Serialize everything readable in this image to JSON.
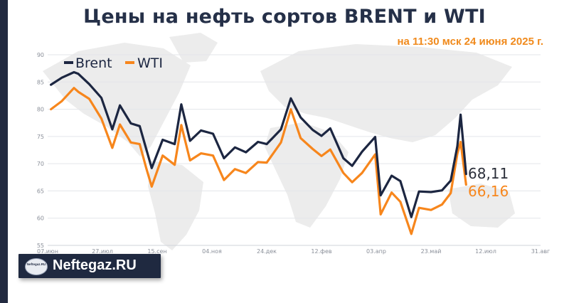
{
  "header": {
    "title": "Цены на нефть сортов BRENT и WTI",
    "subtitle": "на 11:30 мск 24 июня 2025 г."
  },
  "logo": {
    "badge_text": "Neftegaz.RU",
    "text": "Neftegaz.RU"
  },
  "colors": {
    "brent": "#1c2641",
    "wti": "#f7861c",
    "grid": "#e3e5ea",
    "axis_text": "#8a8f99",
    "map": "#ececec"
  },
  "chart_data": {
    "type": "line",
    "title": "Цены на нефть сортов BRENT и WTI",
    "xlabel": "",
    "ylabel": "",
    "ylim": [
      55,
      90
    ],
    "yticks": [
      55,
      60,
      65,
      70,
      75,
      80,
      85,
      90
    ],
    "grid": true,
    "legend_placement": "top-left",
    "x_range": [
      "2024-06-07",
      "2025-08-31"
    ],
    "x_tick_labels": [
      "07.июн",
      "27.июл",
      "15.сен",
      "04.ноя",
      "24.дек",
      "12.фев",
      "03.апр",
      "23.май",
      "12.июл",
      "31.авг"
    ],
    "x": [
      "2024-06-10",
      "2024-06-20",
      "2024-07-01",
      "2024-07-05",
      "2024-07-15",
      "2024-07-26",
      "2024-08-05",
      "2024-08-12",
      "2024-08-22",
      "2024-08-30",
      "2024-09-05",
      "2024-09-10",
      "2024-09-20",
      "2024-10-01",
      "2024-10-07",
      "2024-10-15",
      "2024-10-25",
      "2024-11-05",
      "2024-11-15",
      "2024-11-25",
      "2024-12-05",
      "2024-12-16",
      "2024-12-24",
      "2025-01-06",
      "2025-01-15",
      "2025-01-24",
      "2025-02-04",
      "2025-02-12",
      "2025-02-20",
      "2025-03-04",
      "2025-03-12",
      "2025-03-21",
      "2025-04-02",
      "2025-04-07",
      "2025-04-17",
      "2025-04-25",
      "2025-05-05",
      "2025-05-12",
      "2025-05-23",
      "2025-06-02",
      "2025-06-10",
      "2025-06-16",
      "2025-06-19",
      "2025-06-24"
    ],
    "series": [
      {
        "name": "Brent",
        "values": [
          84.5,
          85.8,
          86.8,
          86.5,
          84.6,
          82.1,
          76.3,
          80.7,
          77.4,
          76.9,
          72.7,
          69.2,
          74.4,
          73.6,
          80.9,
          74.2,
          76.1,
          75.5,
          71.0,
          73.0,
          72.1,
          74.0,
          73.6,
          76.3,
          82.0,
          78.5,
          76.2,
          75.1,
          76.5,
          71.0,
          69.6,
          72.2,
          74.9,
          64.2,
          67.8,
          66.8,
          60.2,
          64.9,
          64.8,
          65.1,
          66.9,
          73.2,
          79.0,
          68.11
        ]
      },
      {
        "name": "WTI",
        "values": [
          80.0,
          81.5,
          83.9,
          83.2,
          81.9,
          78.3,
          72.9,
          77.2,
          73.9,
          73.6,
          69.2,
          65.8,
          71.5,
          69.8,
          77.1,
          70.6,
          71.9,
          71.5,
          67.0,
          69.0,
          68.3,
          70.3,
          70.2,
          73.9,
          80.0,
          74.7,
          72.7,
          71.4,
          72.6,
          68.3,
          66.6,
          68.3,
          71.7,
          60.7,
          64.7,
          63.0,
          57.1,
          61.9,
          61.5,
          62.5,
          64.6,
          71.8,
          74.0,
          66.16
        ]
      }
    ],
    "end_labels": [
      "68,11",
      "66,16"
    ]
  }
}
